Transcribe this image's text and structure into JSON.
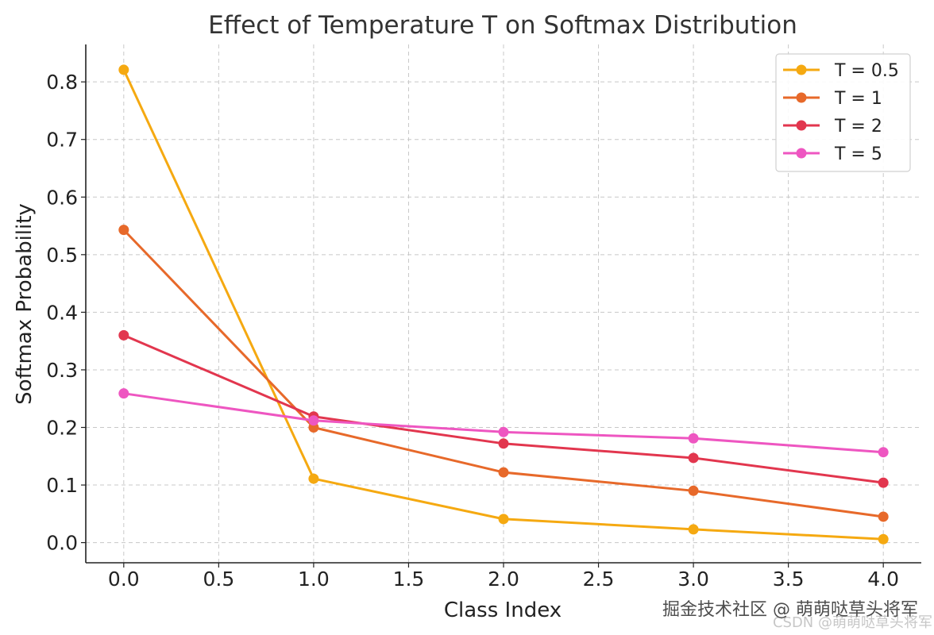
{
  "chart_data": {
    "type": "line",
    "title": "Effect of Temperature T on Softmax Distribution",
    "xlabel": "Class Index",
    "ylabel": "Softmax Probability",
    "x": [
      0,
      1,
      2,
      3,
      4
    ],
    "xlim": [
      -0.2,
      4.2
    ],
    "ylim": [
      -0.035,
      0.865
    ],
    "xticks": [
      0.0,
      0.5,
      1.0,
      1.5,
      2.0,
      2.5,
      3.0,
      3.5,
      4.0
    ],
    "xtick_labels": [
      "0.0",
      "0.5",
      "1.0",
      "1.5",
      "2.0",
      "2.5",
      "3.0",
      "3.5",
      "4.0"
    ],
    "yticks": [
      0.0,
      0.1,
      0.2,
      0.3,
      0.4,
      0.5,
      0.6,
      0.7,
      0.8
    ],
    "ytick_labels": [
      "0.0",
      "0.1",
      "0.2",
      "0.3",
      "0.4",
      "0.5",
      "0.6",
      "0.7",
      "0.8"
    ],
    "grid": true,
    "legend_position": "top-right",
    "series": [
      {
        "name": "T = 0.5",
        "color": "#f5a911",
        "values": [
          0.821,
          0.111,
          0.041,
          0.023,
          0.006
        ]
      },
      {
        "name": "T = 1",
        "color": "#e7692a",
        "values": [
          0.543,
          0.2,
          0.122,
          0.09,
          0.045
        ]
      },
      {
        "name": "T = 2",
        "color": "#e2364e",
        "values": [
          0.36,
          0.219,
          0.172,
          0.147,
          0.104
        ]
      },
      {
        "name": "T = 5",
        "color": "#ee56c1",
        "values": [
          0.259,
          0.212,
          0.192,
          0.181,
          0.157
        ]
      }
    ]
  },
  "watermark": {
    "main": "掘金技术社区 @ 萌萌哒草头将军",
    "sub": "CSDN @萌萌哒草头将军"
  }
}
